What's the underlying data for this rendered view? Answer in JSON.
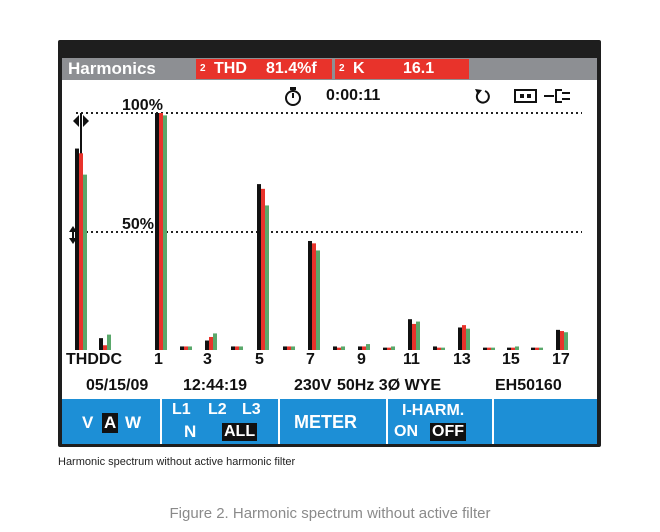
{
  "header": {
    "title": "Harmonics",
    "thd_phase": "2",
    "thd_label": "THD",
    "thd_value": "81.4%f",
    "k_phase": "2",
    "k_label": "K",
    "k_value": "16.1"
  },
  "status": {
    "elapsed_time": "0:00:11",
    "icons": [
      "stopwatch-icon",
      "reset-icon",
      "battery-icon",
      "plug-icon"
    ]
  },
  "axis": {
    "ref_100_label": "100%",
    "ref_50_label": "50%",
    "x_ticks": [
      "THDDC",
      "1",
      "3",
      "5",
      "7",
      "9",
      "11",
      "13",
      "15",
      "17"
    ]
  },
  "info_line": {
    "date": "05/15/09",
    "time": "12:44:19",
    "voltage": "230V",
    "freq_config": "50Hz 3Ø WYE",
    "standard": "EH50160"
  },
  "softkeys": {
    "key1": {
      "v": "V",
      "a": "A",
      "w": "W"
    },
    "key2": {
      "l1": "L1",
      "l2": "L2",
      "l3": "L3",
      "n": "N",
      "all": "ALL"
    },
    "key3": "METER",
    "key4": {
      "title": "I-HARM.",
      "on": "ON",
      "off": "OFF"
    }
  },
  "captions": {
    "small": "Harmonic spectrum without active harmonic filter",
    "figure": "Figure 2. Harmonic spectrum without active filter"
  },
  "colors": {
    "header_bg": "#8d8f93",
    "alert_red": "#e8332b",
    "softkey_blue": "#1d8fd6",
    "series_l1": "#111111",
    "series_l2": "#e8332b",
    "series_l3": "#5aa86b"
  },
  "chart_data": {
    "type": "bar",
    "ylim": [
      0,
      100
    ],
    "categories": [
      "THD",
      "DC",
      "1",
      "2",
      "3",
      "4",
      "5",
      "6",
      "7",
      "8",
      "9",
      "10",
      "11",
      "12",
      "13",
      "14",
      "15",
      "16",
      "17"
    ],
    "series": [
      {
        "name": "L1",
        "values": [
          85,
          5,
          100,
          1.5,
          4,
          1.5,
          70,
          1.5,
          46,
          1.5,
          1.5,
          1,
          13,
          1.5,
          9.5,
          1,
          1,
          1,
          8.5
        ]
      },
      {
        "name": "L2",
        "values": [
          83,
          2,
          100,
          1.5,
          5.5,
          1.5,
          68,
          1.5,
          45,
          1,
          1.5,
          1,
          11,
          1,
          10.5,
          1,
          1,
          1,
          8
        ]
      },
      {
        "name": "L3",
        "values": [
          74,
          6.5,
          99,
          1.5,
          7,
          1.5,
          61,
          1.5,
          42,
          1.5,
          2.5,
          1.5,
          12,
          1,
          9,
          1,
          1.5,
          1,
          7.5
        ]
      }
    ]
  }
}
